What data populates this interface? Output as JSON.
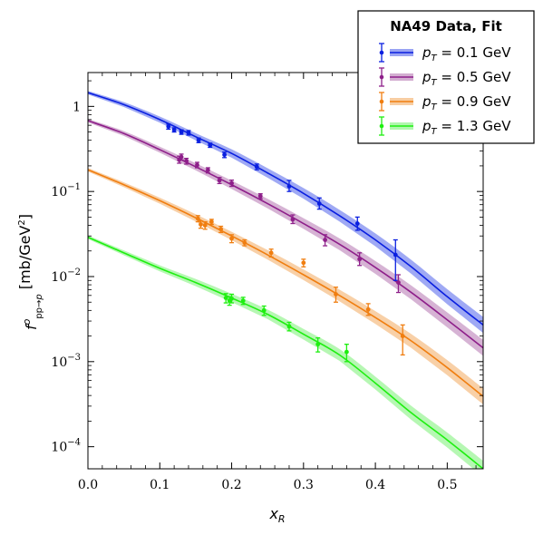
{
  "chart_data": {
    "type": "scatter",
    "title": "",
    "legend_title": "NA49 Data, Fit",
    "xlabel": "x_R",
    "ylabel": "f^o_{pp→p̄}  [mb/GeV²]",
    "xlim": [
      0.0,
      0.55
    ],
    "ylim": [
      5.5e-05,
      2.5
    ],
    "yscale": "log",
    "x_ticks": [
      "0.0",
      "0.1",
      "0.2",
      "0.3",
      "0.4",
      "0.5"
    ],
    "y_ticks": [
      "10^-4",
      "10^-3",
      "10^-2",
      "10^-1",
      "1"
    ],
    "legend_position": "top-right",
    "series": [
      {
        "name": "p_T = 0.1 GeV",
        "color": "#0a1fe0",
        "band_color": "#7f8cf0",
        "points": [
          {
            "x": 0.112,
            "y": 0.58,
            "lo": 0.54,
            "hi": 0.62
          },
          {
            "x": 0.12,
            "y": 0.53,
            "lo": 0.5,
            "hi": 0.56
          },
          {
            "x": 0.13,
            "y": 0.5,
            "lo": 0.47,
            "hi": 0.53
          },
          {
            "x": 0.14,
            "y": 0.49,
            "lo": 0.46,
            "hi": 0.52
          },
          {
            "x": 0.154,
            "y": 0.4,
            "lo": 0.375,
            "hi": 0.425
          },
          {
            "x": 0.17,
            "y": 0.35,
            "lo": 0.33,
            "hi": 0.37
          },
          {
            "x": 0.19,
            "y": 0.27,
            "lo": 0.25,
            "hi": 0.29
          },
          {
            "x": 0.235,
            "y": 0.195,
            "lo": 0.18,
            "hi": 0.21
          },
          {
            "x": 0.28,
            "y": 0.115,
            "lo": 0.1,
            "hi": 0.135
          },
          {
            "x": 0.322,
            "y": 0.072,
            "lo": 0.062,
            "hi": 0.084
          },
          {
            "x": 0.375,
            "y": 0.042,
            "lo": 0.035,
            "hi": 0.05
          },
          {
            "x": 0.428,
            "y": 0.018,
            "lo": 0.009,
            "hi": 0.027
          }
        ],
        "fit": [
          [
            0.0,
            1.45
          ],
          [
            0.05,
            1.05
          ],
          [
            0.1,
            0.7
          ],
          [
            0.15,
            0.44
          ],
          [
            0.2,
            0.28
          ],
          [
            0.25,
            0.165
          ],
          [
            0.3,
            0.095
          ],
          [
            0.35,
            0.052
          ],
          [
            0.4,
            0.027
          ],
          [
            0.45,
            0.013
          ],
          [
            0.5,
            0.0058
          ],
          [
            0.55,
            0.0027
          ]
        ]
      },
      {
        "name": "p_T = 0.5 GeV",
        "color": "#8e1f8a",
        "band_color": "#c89ac6",
        "points": [
          {
            "x": 0.127,
            "y": 0.235,
            "lo": 0.215,
            "hi": 0.26
          },
          {
            "x": 0.13,
            "y": 0.255,
            "lo": 0.235,
            "hi": 0.275
          },
          {
            "x": 0.137,
            "y": 0.228,
            "lo": 0.21,
            "hi": 0.245
          },
          {
            "x": 0.152,
            "y": 0.205,
            "lo": 0.19,
            "hi": 0.22
          },
          {
            "x": 0.167,
            "y": 0.178,
            "lo": 0.165,
            "hi": 0.19
          },
          {
            "x": 0.183,
            "y": 0.135,
            "lo": 0.124,
            "hi": 0.146
          },
          {
            "x": 0.2,
            "y": 0.125,
            "lo": 0.115,
            "hi": 0.136
          },
          {
            "x": 0.24,
            "y": 0.088,
            "lo": 0.082,
            "hi": 0.094
          },
          {
            "x": 0.285,
            "y": 0.047,
            "lo": 0.042,
            "hi": 0.053
          },
          {
            "x": 0.33,
            "y": 0.027,
            "lo": 0.023,
            "hi": 0.031
          },
          {
            "x": 0.378,
            "y": 0.016,
            "lo": 0.0135,
            "hi": 0.019
          },
          {
            "x": 0.432,
            "y": 0.0085,
            "lo": 0.0065,
            "hi": 0.0105
          }
        ],
        "fit": [
          [
            0.0,
            0.68
          ],
          [
            0.05,
            0.48
          ],
          [
            0.1,
            0.31
          ],
          [
            0.15,
            0.195
          ],
          [
            0.2,
            0.12
          ],
          [
            0.25,
            0.072
          ],
          [
            0.3,
            0.042
          ],
          [
            0.35,
            0.024
          ],
          [
            0.4,
            0.0128
          ],
          [
            0.45,
            0.0065
          ],
          [
            0.5,
            0.0031
          ],
          [
            0.55,
            0.00145
          ]
        ]
      },
      {
        "name": "p_T = 0.9 GeV",
        "color": "#f07e10",
        "band_color": "#f6c08a",
        "points": [
          {
            "x": 0.153,
            "y": 0.048,
            "lo": 0.044,
            "hi": 0.052
          },
          {
            "x": 0.157,
            "y": 0.041,
            "lo": 0.037,
            "hi": 0.045
          },
          {
            "x": 0.163,
            "y": 0.04,
            "lo": 0.036,
            "hi": 0.044
          },
          {
            "x": 0.172,
            "y": 0.044,
            "lo": 0.041,
            "hi": 0.047
          },
          {
            "x": 0.185,
            "y": 0.036,
            "lo": 0.033,
            "hi": 0.039
          },
          {
            "x": 0.2,
            "y": 0.028,
            "lo": 0.025,
            "hi": 0.031
          },
          {
            "x": 0.218,
            "y": 0.025,
            "lo": 0.023,
            "hi": 0.027
          },
          {
            "x": 0.255,
            "y": 0.019,
            "lo": 0.017,
            "hi": 0.021
          },
          {
            "x": 0.3,
            "y": 0.0145,
            "lo": 0.013,
            "hi": 0.016
          },
          {
            "x": 0.345,
            "y": 0.0062,
            "lo": 0.005,
            "hi": 0.0075
          },
          {
            "x": 0.39,
            "y": 0.0041,
            "lo": 0.0035,
            "hi": 0.0048
          },
          {
            "x": 0.438,
            "y": 0.002,
            "lo": 0.0012,
            "hi": 0.0027
          }
        ],
        "fit": [
          [
            0.0,
            0.18
          ],
          [
            0.05,
            0.12
          ],
          [
            0.1,
            0.078
          ],
          [
            0.15,
            0.049
          ],
          [
            0.2,
            0.03
          ],
          [
            0.25,
            0.018
          ],
          [
            0.3,
            0.0105
          ],
          [
            0.35,
            0.006
          ],
          [
            0.4,
            0.0033
          ],
          [
            0.45,
            0.00175
          ],
          [
            0.5,
            0.00085
          ],
          [
            0.55,
            0.00039
          ]
        ]
      },
      {
        "name": "p_T = 1.3 GeV",
        "color": "#1eef10",
        "band_color": "#9df49a",
        "points": [
          {
            "x": 0.192,
            "y": 0.0056,
            "lo": 0.0049,
            "hi": 0.0063
          },
          {
            "x": 0.197,
            "y": 0.0052,
            "lo": 0.0046,
            "hi": 0.0058
          },
          {
            "x": 0.2,
            "y": 0.0055,
            "lo": 0.0049,
            "hi": 0.0062
          },
          {
            "x": 0.216,
            "y": 0.0052,
            "lo": 0.0047,
            "hi": 0.0057
          },
          {
            "x": 0.245,
            "y": 0.004,
            "lo": 0.0035,
            "hi": 0.0045
          },
          {
            "x": 0.28,
            "y": 0.0026,
            "lo": 0.0023,
            "hi": 0.0029
          },
          {
            "x": 0.32,
            "y": 0.0016,
            "lo": 0.0013,
            "hi": 0.0019
          },
          {
            "x": 0.36,
            "y": 0.0013,
            "lo": 0.001,
            "hi": 0.0016
          }
        ],
        "fit": [
          [
            0.0,
            0.029
          ],
          [
            0.05,
            0.019
          ],
          [
            0.1,
            0.0125
          ],
          [
            0.15,
            0.0085
          ],
          [
            0.2,
            0.0056
          ],
          [
            0.25,
            0.0036
          ],
          [
            0.3,
            0.0021
          ],
          [
            0.35,
            0.0012
          ],
          [
            0.4,
            0.00056
          ],
          [
            0.45,
            0.00025
          ],
          [
            0.5,
            0.00012
          ],
          [
            0.55,
            5.5e-05
          ]
        ]
      }
    ]
  }
}
